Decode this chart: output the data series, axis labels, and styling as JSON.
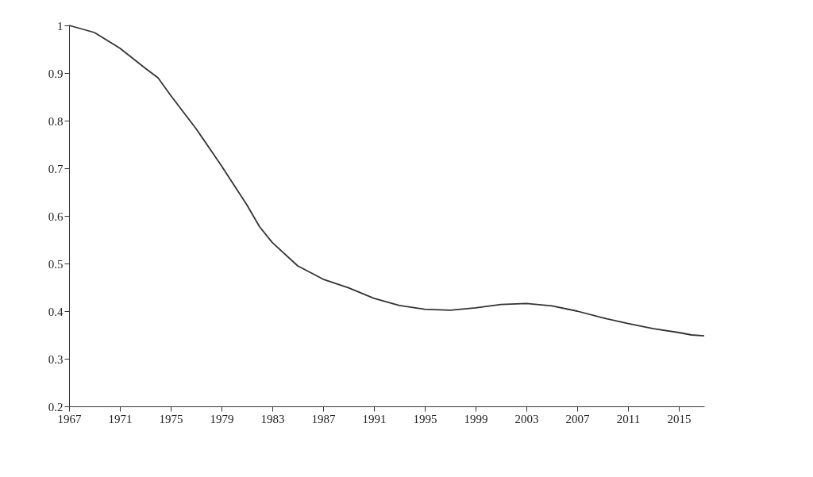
{
  "chart_data": {
    "type": "line",
    "x": [
      1967,
      1969,
      1971,
      1973,
      1974,
      1975,
      1977,
      1979,
      1981,
      1982,
      1983,
      1985,
      1987,
      1989,
      1991,
      1993,
      1995,
      1997,
      1999,
      2001,
      2003,
      2005,
      2007,
      2009,
      2011,
      2013,
      2015,
      2016,
      2017
    ],
    "series": [
      {
        "color": "#333333",
        "values": [
          1.0,
          0.985,
          0.952,
          0.91,
          0.89,
          0.853,
          0.783,
          0.705,
          0.623,
          0.577,
          0.544,
          0.495,
          0.467,
          0.449,
          0.427,
          0.412,
          0.404,
          0.402,
          0.407,
          0.414,
          0.416,
          0.411,
          0.4,
          0.386,
          0.374,
          0.363,
          0.355,
          0.35,
          0.348
        ]
      }
    ],
    "xlim": [
      1967,
      2017
    ],
    "xticks": [
      1967,
      1971,
      1975,
      1979,
      1983,
      1987,
      1991,
      1995,
      1999,
      2003,
      2007,
      2011,
      2015
    ],
    "ylim": [
      0.2,
      1
    ],
    "yticks": [
      0.2,
      0.3,
      0.4,
      0.5,
      0.6,
      0.7,
      0.8,
      0.9,
      1
    ],
    "grid": false,
    "legend": false,
    "marker": "none",
    "line_style": "solid"
  }
}
